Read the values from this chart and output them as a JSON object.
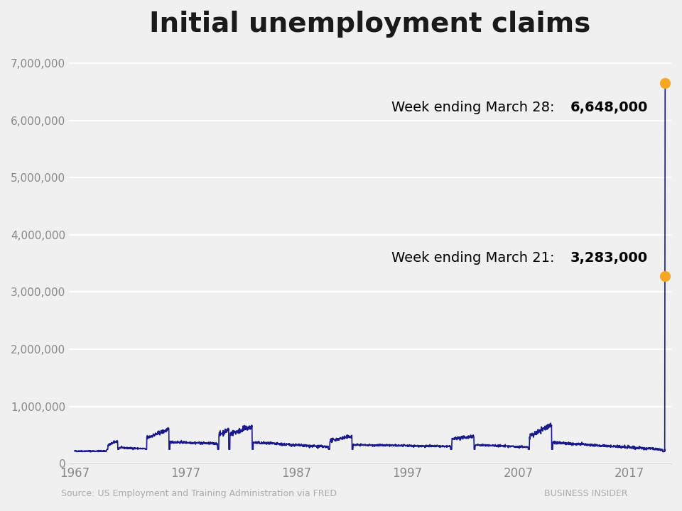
{
  "title": "Initial unemployment claims",
  "title_fontsize": 28,
  "title_fontweight": "bold",
  "line_color": "#1a1a8c",
  "line_width": 1.2,
  "annotation_dot_color": "#f5a623",
  "annotation_dot_size": 120,
  "annotation1_label": "Week ending March 28: ",
  "annotation1_bold": "6,648,000",
  "annotation1_value": 6648000,
  "annotation2_label": "Week ending March 21: ",
  "annotation2_bold": "3,283,000",
  "annotation2_value": 3283000,
  "source_text": "Source: US Employment and Training Administration via FRED",
  "watermark_text": "BUSINESS INSIDER",
  "bg_color": "#f0f0f0",
  "grid_color": "#ffffff",
  "ytick_labels": [
    "0",
    "1,000,000",
    "2,000,000",
    "3,000,000",
    "4,000,000",
    "5,000,000",
    "6,000,000",
    "7,000,000"
  ],
  "ytick_values": [
    0,
    1000000,
    2000000,
    3000000,
    4000000,
    5000000,
    6000000,
    7000000
  ],
  "xtick_labels": [
    "1967",
    "1977",
    "1987",
    "1997",
    "2007",
    "2017"
  ],
  "xtick_values": [
    1967,
    1977,
    1987,
    1997,
    2007,
    2017
  ],
  "xlim": [
    1966.5,
    2020.8
  ],
  "ylim": [
    0,
    7200000
  ]
}
